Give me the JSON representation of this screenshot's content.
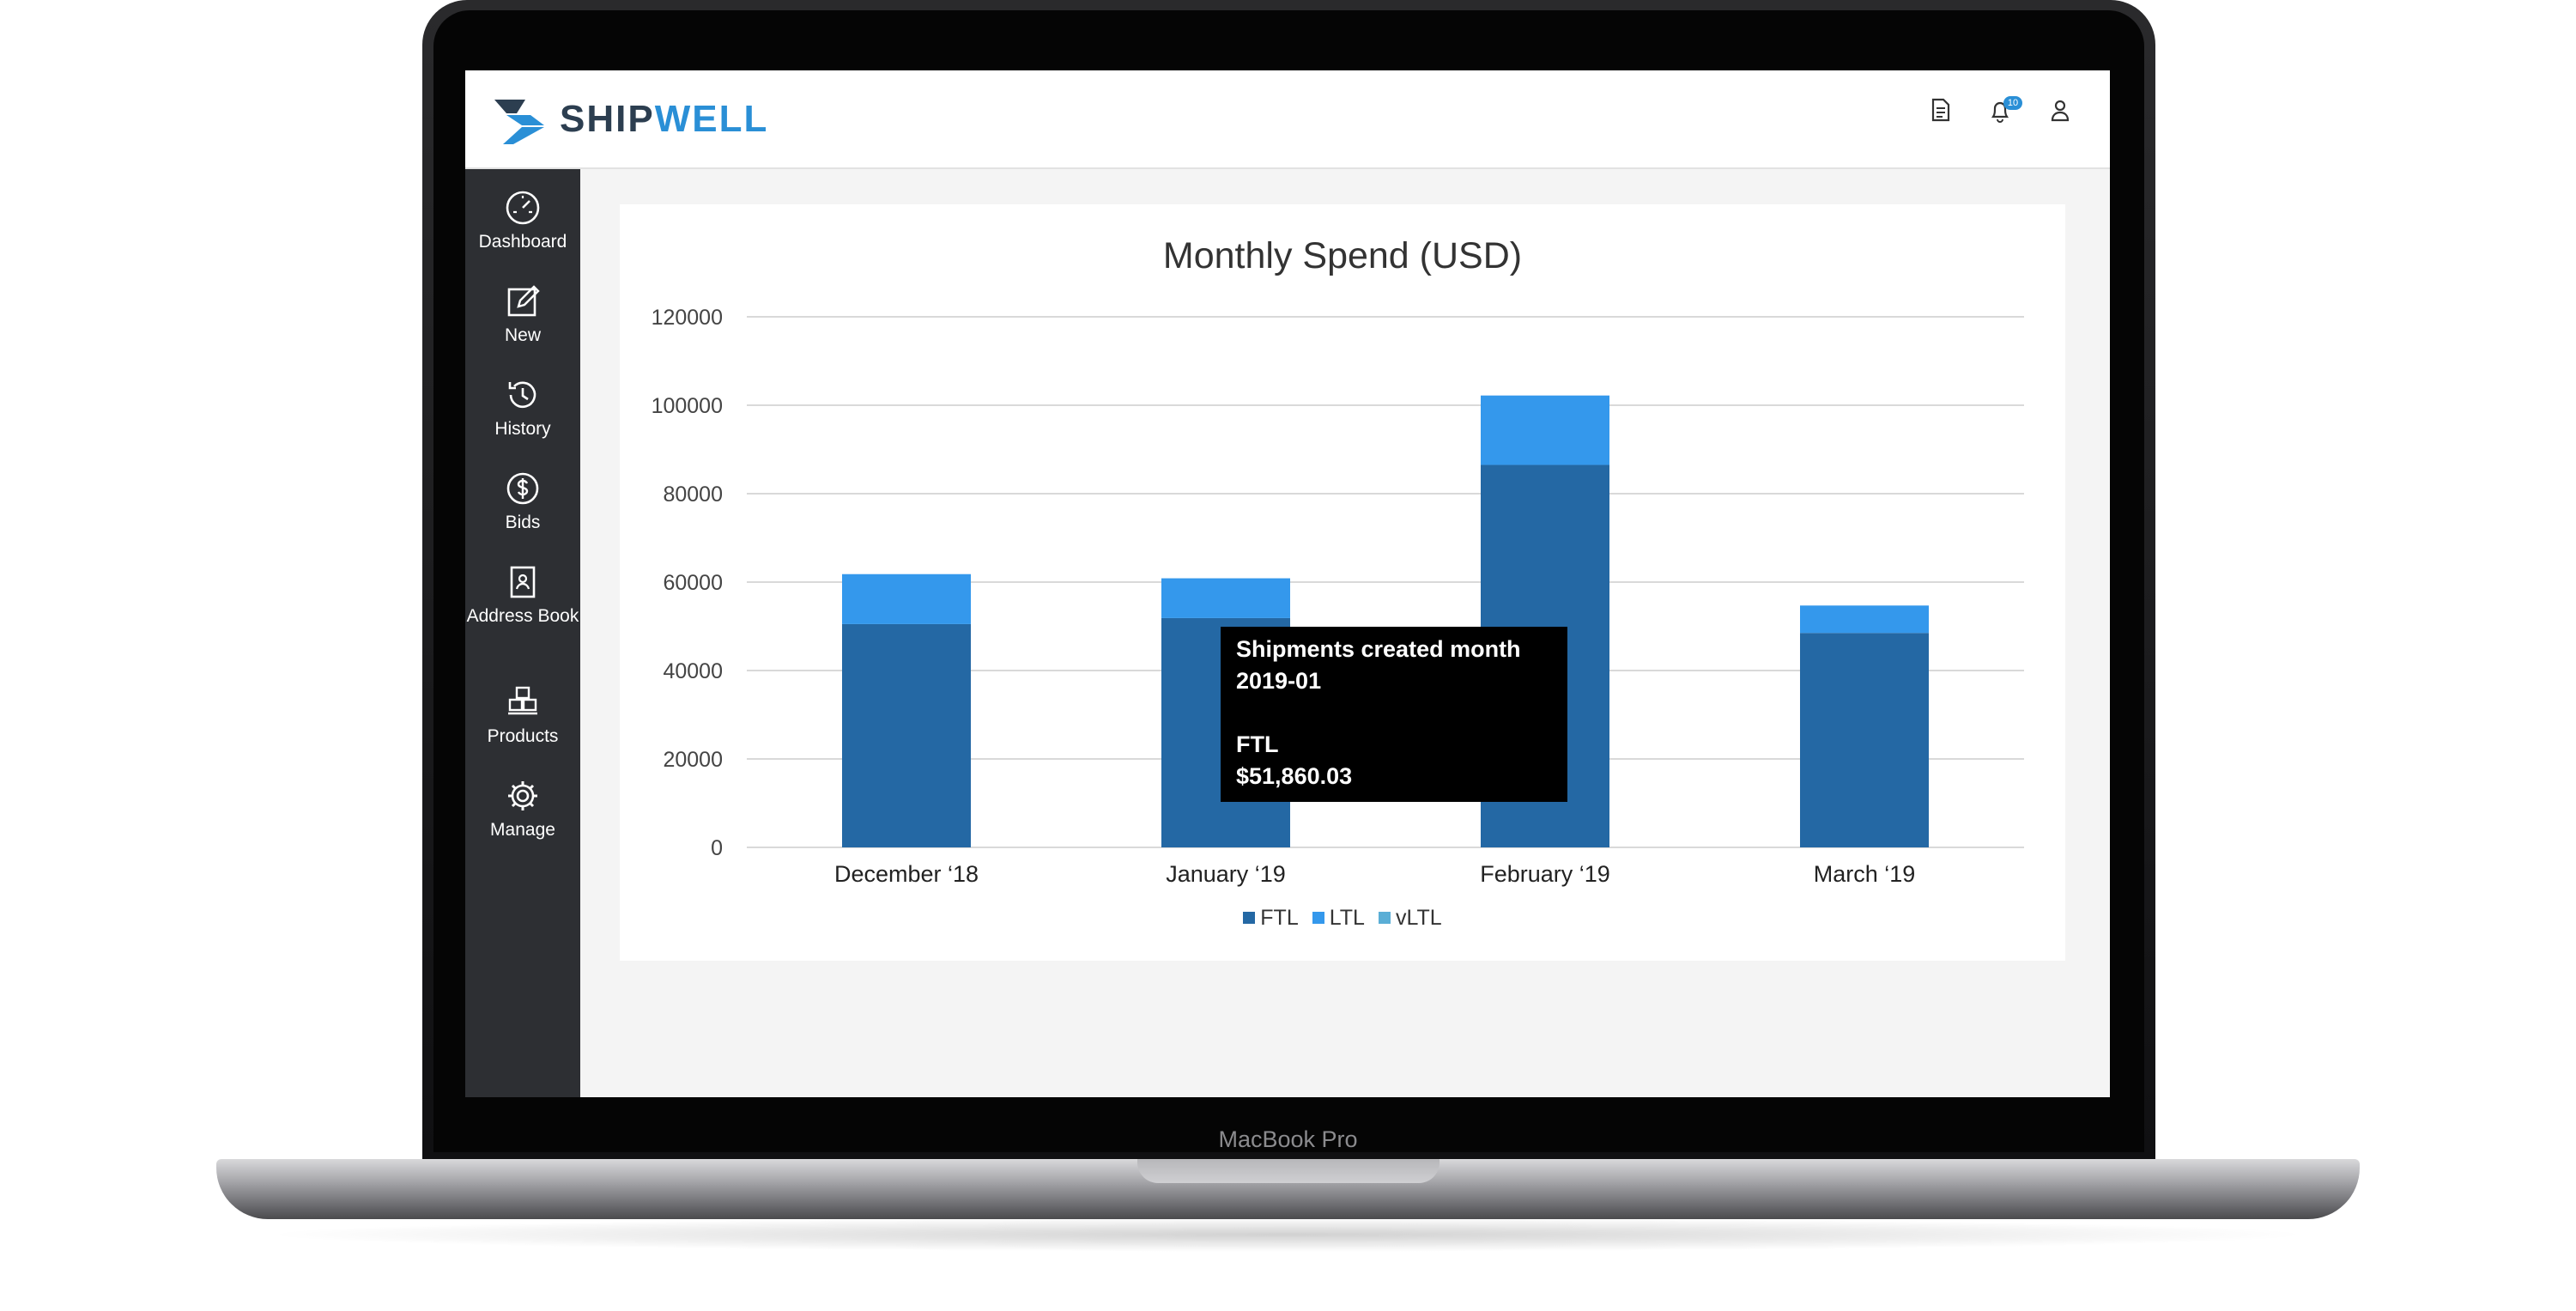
{
  "device": {
    "label": "MacBook Pro"
  },
  "app": {
    "brand": {
      "part1": "SHIP",
      "part2": "WELL"
    },
    "colors": {
      "primary": "#2a8fd6",
      "dark": "#2c3e50",
      "sidebar": "#2d2f33"
    },
    "topbar_icons": [
      {
        "icon": "document-icon"
      },
      {
        "icon": "bell-icon",
        "badge": "10"
      },
      {
        "icon": "user-icon"
      }
    ],
    "sidebar": {
      "items": [
        {
          "label": "Dashboard",
          "icon": "speedometer-icon"
        },
        {
          "label": "New",
          "icon": "edit-icon"
        },
        {
          "label": "History",
          "icon": "history-icon"
        },
        {
          "label": "Bids",
          "icon": "dollar-icon"
        },
        {
          "label": "Address Book",
          "icon": "address-book-icon"
        },
        {
          "label": "Products",
          "icon": "boxes-icon"
        },
        {
          "label": "Manage",
          "icon": "gear-icon"
        }
      ]
    }
  },
  "chart_data": {
    "type": "bar",
    "stacked": true,
    "title": "Monthly Spend (USD)",
    "categories": [
      "December ‘18",
      "January ‘19",
      "February ‘19",
      "March ‘19"
    ],
    "series": [
      {
        "name": "FTL",
        "color": "#2468a4",
        "values": [
          50500,
          51860,
          86500,
          48500
        ]
      },
      {
        "name": "LTL",
        "color": "#3498ec",
        "values": [
          11300,
          9000,
          15700,
          6200
        ]
      },
      {
        "name": "vLTL",
        "color": "#5aaed6",
        "values": [
          0,
          0,
          0,
          0
        ]
      }
    ],
    "y_ticks": [
      "0",
      "20000",
      "40000",
      "60000",
      "80000",
      "100000",
      "120000"
    ],
    "ylim": [
      0,
      120000
    ],
    "grid": true,
    "legend_position": "bottom",
    "tooltip": {
      "line1": "Shipments created month",
      "line2": "2019-01",
      "line3": "FTL",
      "line4": "$51,860.03"
    }
  }
}
